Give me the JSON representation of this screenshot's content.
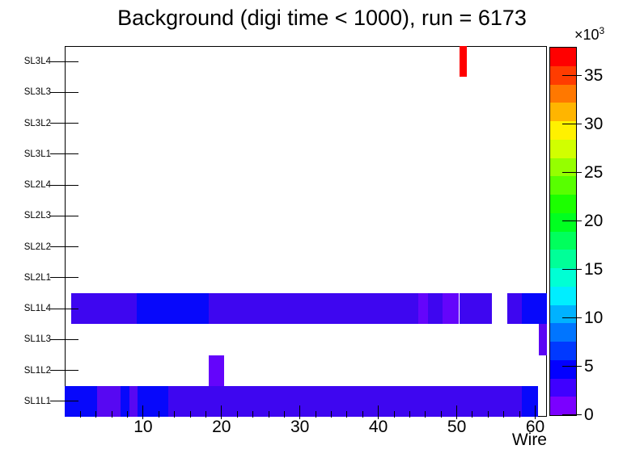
{
  "title": "Background (digi time < 1000), run = 6173",
  "chart_data": {
    "type": "heatmap",
    "title": "Background (digi time < 1000), run = 6173",
    "xlabel": "Wire",
    "ylabel": "",
    "x_range": [
      0,
      61.5
    ],
    "x_ticks": [
      10,
      20,
      30,
      40,
      50,
      60
    ],
    "x_minor_step": 2,
    "grid": false,
    "y_categories": [
      "SL1L1",
      "SL1L2",
      "SL1L3",
      "SL1L4",
      "SL2L1",
      "SL2L2",
      "SL2L3",
      "SL2L4",
      "SL3L1",
      "SL3L2",
      "SL3L3",
      "SL3L4"
    ],
    "rows": [
      {
        "layer": "SL1L1",
        "segments": [
          {
            "from": 0.0,
            "to": 4.1,
            "value": 5000,
            "color": "#0708FB"
          },
          {
            "from": 4.1,
            "to": 7.1,
            "value": 2500,
            "color": "#5708F2"
          },
          {
            "from": 7.1,
            "to": 8.3,
            "value": 5000,
            "color": "#0708FB"
          },
          {
            "from": 8.3,
            "to": 9.3,
            "value": 2500,
            "color": "#5708F2"
          },
          {
            "from": 9.3,
            "to": 13.2,
            "value": 5000,
            "color": "#0708FB"
          },
          {
            "from": 13.2,
            "to": 58.3,
            "value": 3000,
            "color": "#3E06F0"
          },
          {
            "from": 58.3,
            "to": 60.4,
            "value": 5000,
            "color": "#0708FB"
          }
        ]
      },
      {
        "layer": "SL1L2",
        "segments": [
          {
            "from": 18.4,
            "to": 20.3,
            "value": 1900,
            "color": "#6405FB"
          }
        ]
      },
      {
        "layer": "SL1L3",
        "segments": [
          {
            "from": 60.5,
            "to": 61.5,
            "value": 1800,
            "color": "#5C06F4"
          }
        ]
      },
      {
        "layer": "SL1L4",
        "segments": [
          {
            "from": 0.8,
            "to": 9.2,
            "value": 3000,
            "color": "#3E06F0"
          },
          {
            "from": 9.2,
            "to": 18.4,
            "value": 5000,
            "color": "#0708FB"
          },
          {
            "from": 18.4,
            "to": 45.1,
            "value": 3000,
            "color": "#3E06F0"
          },
          {
            "from": 45.1,
            "to": 46.3,
            "value": 1900,
            "color": "#6405FB"
          },
          {
            "from": 46.3,
            "to": 48.2,
            "value": 3000,
            "color": "#3E06F0"
          },
          {
            "from": 48.2,
            "to": 50.3,
            "value": 1900,
            "color": "#6405FB"
          },
          {
            "from": 50.3,
            "to": 54.5,
            "value": 3000,
            "color": "#3E06F0"
          },
          {
            "from": 56.4,
            "to": 58.3,
            "value": 3000,
            "color": "#3E06F0"
          },
          {
            "from": 58.3,
            "to": 61.5,
            "value": 5000,
            "color": "#0708FB"
          }
        ]
      },
      {
        "layer": "SL3L4",
        "segments": [
          {
            "from": 50.3,
            "to": 51.3,
            "value": 37500,
            "color": "#FF0000"
          }
        ]
      }
    ],
    "colorbar": {
      "position": "right",
      "multiplier_base": "×10",
      "multiplier_exp": "3",
      "ticks": [
        0,
        5,
        10,
        15,
        20,
        25,
        30,
        35
      ],
      "min_value": 0,
      "max_value": 38000,
      "colors": [
        "#7B00FF",
        "#3F00FF",
        "#0300FF",
        "#0039FF",
        "#0075FF",
        "#00B2FF",
        "#00EEFF",
        "#00FFD4",
        "#00FF98",
        "#00FF5C",
        "#00FF20",
        "#1CFF00",
        "#58FF00",
        "#95FF00",
        "#D1FF00",
        "#FFF100",
        "#FFB500",
        "#FF7800",
        "#FF3C00",
        "#FF0000"
      ]
    }
  }
}
